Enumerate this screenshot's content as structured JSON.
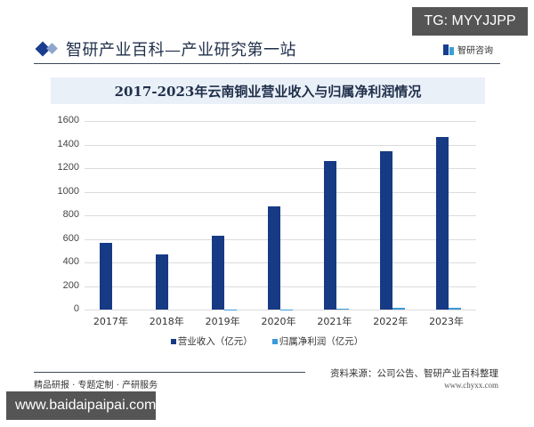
{
  "badges": {
    "tg": "TG: MYYJJPP",
    "url": "www.baidaipaipai.com"
  },
  "header": {
    "title": "智研产业百科—产业研究第一站",
    "brand": "智研咨询"
  },
  "chart_title": "2017-2023年云南铜业营业收入与归属净利润情况",
  "legend": [
    {
      "label": "营业收入（亿元）",
      "color": "#173a84"
    },
    {
      "label": "归属净利润（亿元）",
      "color": "#3b9ad9"
    }
  ],
  "footer": {
    "left": "精品研报 · 专题定制 · 产研服务",
    "source": "资料来源：公司公告、智研产业百科整理",
    "url": "www.chyxx.com"
  },
  "chart_data": {
    "type": "bar",
    "title": "2017-2023年云南铜业营业收入与归属净利润情况",
    "xlabel": "",
    "ylabel": "",
    "categories": [
      "2017年",
      "2018年",
      "2019年",
      "2020年",
      "2021年",
      "2022年",
      "2023年"
    ],
    "series": [
      {
        "name": "营业收入（亿元）",
        "color": "#173a84",
        "values": [
          566,
          468,
          626,
          876,
          1260,
          1343,
          1464
        ]
      },
      {
        "name": "归属净利润（亿元）",
        "color": "#3b9ad9",
        "values": [
          0.4,
          0.5,
          0.6,
          3.8,
          8.1,
          13.5,
          15.2
        ]
      }
    ],
    "yticks": [
      0,
      200,
      400,
      600,
      800,
      1000,
      1200,
      1400,
      1600
    ],
    "ylim": [
      0,
      1600
    ],
    "grid": true,
    "legend_position": "bottom"
  }
}
